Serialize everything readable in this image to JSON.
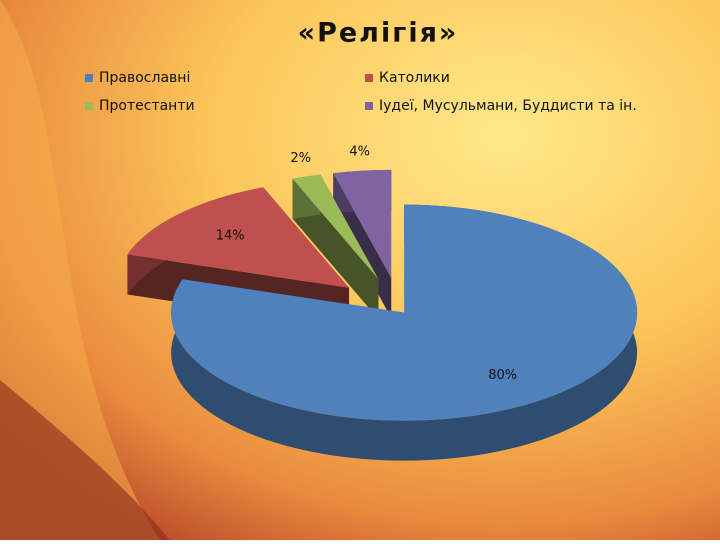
{
  "chart_data": {
    "type": "pie",
    "title": "«Релігія»",
    "categories": [
      "Православні",
      "Католики",
      "Протестанти",
      "Іудеї, Мусульмани, Буддисти та ін."
    ],
    "values": [
      80,
      14,
      2,
      4
    ],
    "value_labels": [
      "80%",
      "14%",
      "2%",
      "4%"
    ],
    "colors": [
      "#4f81bd",
      "#c0504d",
      "#9bbb59",
      "#8064a2"
    ],
    "legend": "top"
  }
}
